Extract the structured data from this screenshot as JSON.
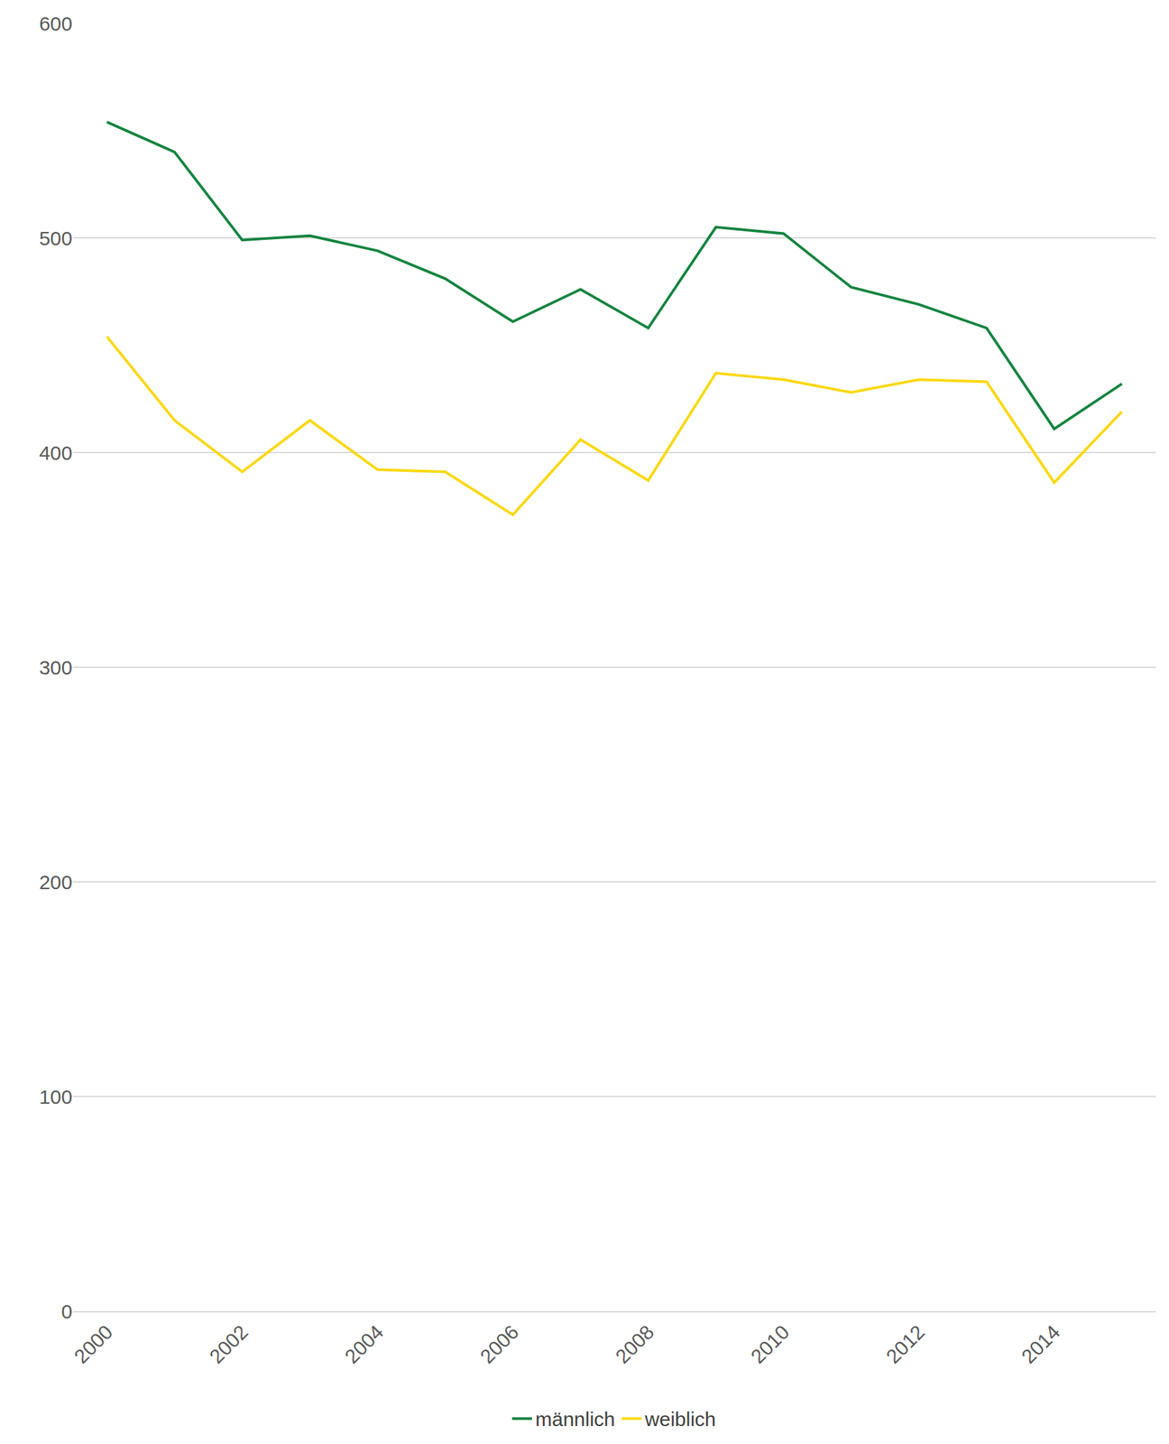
{
  "chart_data": {
    "type": "line",
    "x": [
      2000,
      2001,
      2002,
      2003,
      2004,
      2005,
      2006,
      2007,
      2008,
      2009,
      2010,
      2011,
      2012,
      2013,
      2014,
      2015
    ],
    "series": [
      {
        "name": "männlich",
        "color": "#13843f",
        "values": [
          554,
          540,
          499,
          501,
          494,
          481,
          461,
          476,
          458,
          505,
          502,
          477,
          469,
          458,
          411,
          432
        ]
      },
      {
        "name": "weiblich",
        "color": "#fcd80f",
        "values": [
          454,
          415,
          391,
          415,
          392,
          391,
          371,
          406,
          387,
          437,
          434,
          428,
          434,
          433,
          386,
          419
        ]
      }
    ],
    "xlim": [
      1999.5,
      2015.5
    ],
    "xticks": [
      2000,
      2002,
      2004,
      2006,
      2008,
      2010,
      2012,
      2014
    ],
    "ylim": [
      0,
      600
    ],
    "yticks": [
      0,
      100,
      200,
      300,
      400,
      500,
      600
    ],
    "grid": true,
    "legend": "bottom"
  }
}
